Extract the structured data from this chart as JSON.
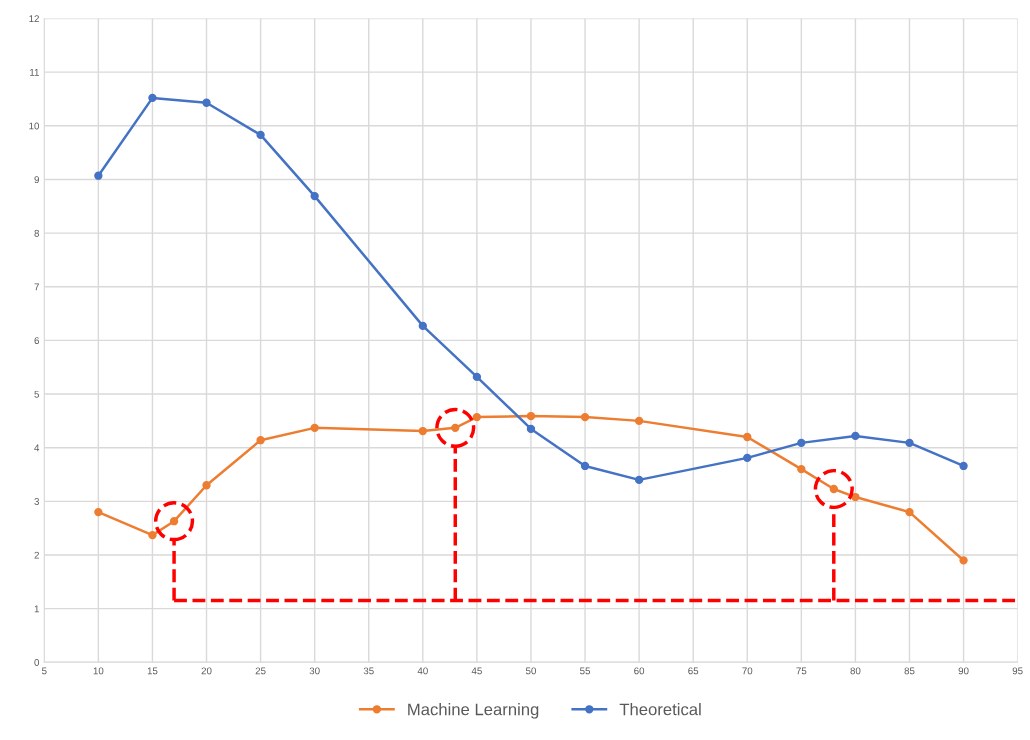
{
  "chart_data": {
    "type": "line",
    "marker": "circle",
    "grid": true,
    "legend": "bottom",
    "xlim": [
      5,
      95
    ],
    "xticks": [
      5,
      10,
      15,
      20,
      25,
      30,
      35,
      40,
      45,
      50,
      55,
      60,
      65,
      70,
      75,
      80,
      85,
      90,
      95
    ],
    "ylim": [
      0,
      12
    ],
    "yticks": [
      0,
      1,
      2,
      3,
      4,
      5,
      6,
      7,
      8,
      9,
      10,
      11,
      12
    ],
    "series": [
      {
        "name": "Machine Learning",
        "color": "#ed7d31",
        "x": [
          10,
          15,
          17,
          20,
          25,
          30,
          40,
          43,
          45,
          50,
          55,
          60,
          70,
          75,
          78,
          80,
          85,
          90
        ],
        "values": [
          2.8,
          2.37,
          2.63,
          3.3,
          4.14,
          4.37,
          4.31,
          4.37,
          4.57,
          4.59,
          4.57,
          4.5,
          4.2,
          3.6,
          3.23,
          3.08,
          2.8,
          1.9
        ]
      },
      {
        "name": "Theoretical",
        "color": "#4472c4",
        "x": [
          10,
          15,
          20,
          25,
          30,
          40,
          45,
          50,
          55,
          60,
          70,
          75,
          80,
          85,
          90
        ],
        "values": [
          9.07,
          10.52,
          10.43,
          9.83,
          8.69,
          6.27,
          5.32,
          4.35,
          3.66,
          3.4,
          3.81,
          4.09,
          4.22,
          4.09,
          3.66
        ]
      },
      {
        "type": "scatter",
        "marker": "circle",
        "line_style": "dashed",
        "color": "#ff0000",
        "x": [
          17,
          43,
          78
        ],
        "values": [
          2.63,
          4.37,
          3.23
        ]
      }
    ],
    "ref_lines": [
      {
        "axis": "y",
        "value": 1.15,
        "color": "#ff0000",
        "line_style": "dashed"
      },
      {
        "axis": "x",
        "value": 17,
        "color": "#ff0000",
        "line_style": "dashed"
      },
      {
        "axis": "x",
        "value": 43,
        "color": "#ff0000",
        "line_style": "dashed"
      },
      {
        "axis": "x",
        "value": 78,
        "color": "#ff0000",
        "line_style": "dashed"
      }
    ]
  }
}
